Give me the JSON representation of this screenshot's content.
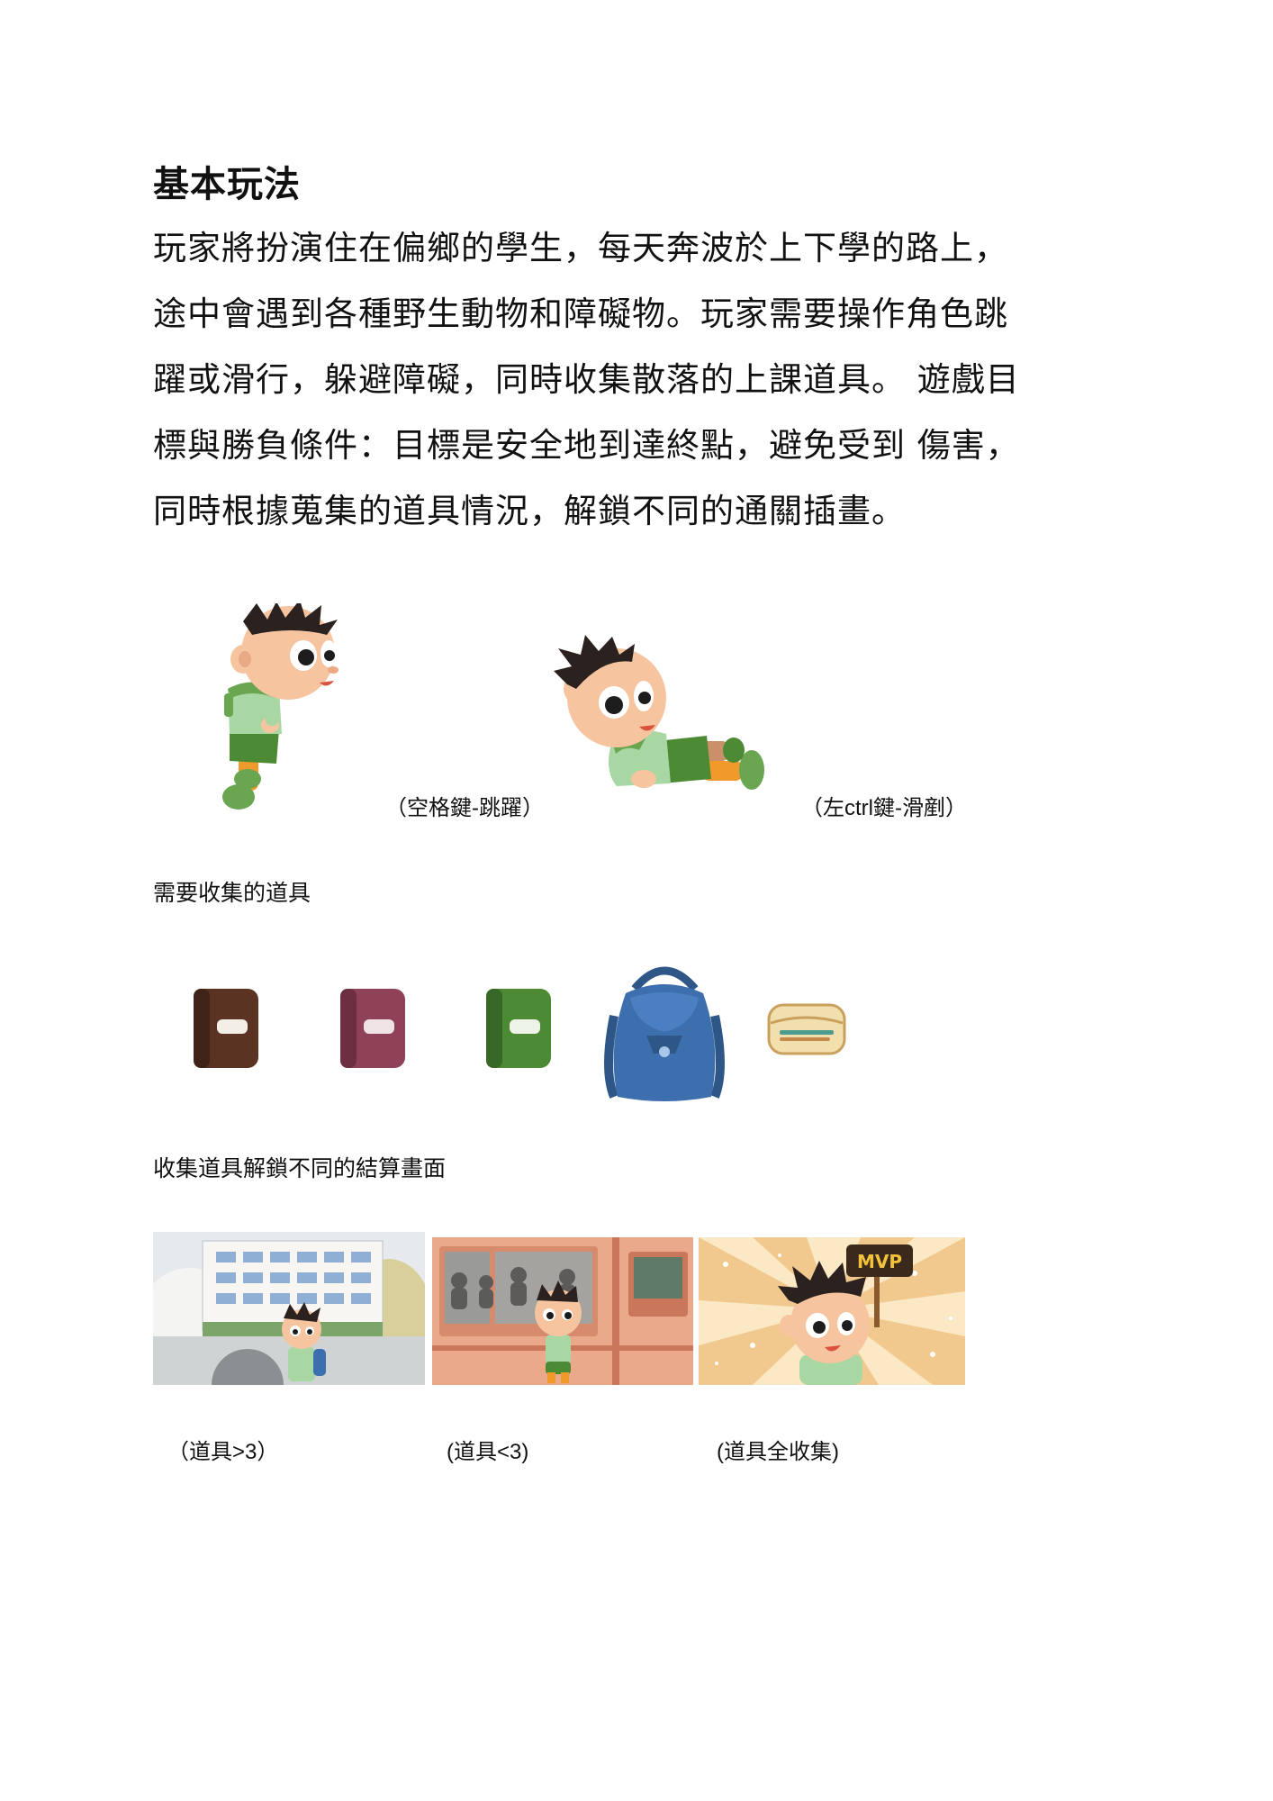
{
  "heading": "基本玩法",
  "intro_lines": [
    "玩家將扮演住在偏鄉的學生，每天奔波於上下學的路上，",
    "途中會遇到各種野生動物和障礙物。玩家需要操作角色跳",
    "躍或滑行，躲避障礙，同時收集散落的上課道具。 遊戲目",
    "標與勝負條件：目標是安全地到達終點，避免受到 傷害，",
    "同時根據蒐集的道具情況，解鎖不同的通關插畫。"
  ],
  "controls": {
    "jump_caption": "（空格鍵-跳躍）",
    "slide_caption": "（左ctrl鍵-滑剷）"
  },
  "items_section": {
    "label": "需要收集的道具",
    "items": [
      "brown-book-icon",
      "maroon-book-icon",
      "green-book-icon",
      "backpack-icon",
      "pencil-case-icon"
    ],
    "colors": {
      "brown_book": "#5a3322",
      "maroon_book": "#8e4157",
      "green_book": "#4d8a34",
      "backpack": "#3d6fae",
      "pencil_case": "#f2dfae"
    }
  },
  "endings_section": {
    "label": "收集道具解鎖不同的結算畫面",
    "endings": [
      {
        "caption": "（道具>3）"
      },
      {
        "caption": "(道具<3)"
      },
      {
        "caption": "(道具全收集)",
        "badge": "MVP"
      }
    ]
  }
}
